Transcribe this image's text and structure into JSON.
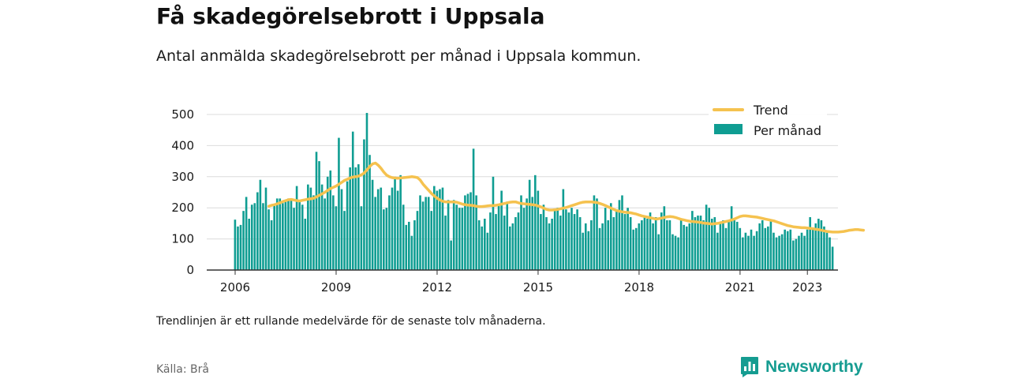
{
  "header": {
    "title": "Få skadegörelsebrott i Uppsala",
    "subtitle": "Antal anmälda skadegörelsebrott per månad i Uppsala kommun."
  },
  "footer": {
    "note": "Trendlinjen är ett rullande medelvärde för de senaste tolv månaderna.",
    "source": "Källa: Brå",
    "brand": "Newsworthy"
  },
  "colors": {
    "bars": "#0f9d92",
    "trend": "#f5c24f",
    "brand": "#159c91"
  },
  "icons": {
    "brand_logo": "bar-chart-speech-bubble-icon"
  },
  "chart_data": {
    "type": "bar",
    "title": "",
    "xlabel": "",
    "ylabel": "",
    "ylim": [
      0,
      500
    ],
    "yticks": [
      0,
      100,
      200,
      300,
      400,
      500
    ],
    "xticks": [
      "2006",
      "2009",
      "2012",
      "2015",
      "2018",
      "2021",
      "2023"
    ],
    "grid": true,
    "legend_position": "top-right",
    "start_month": "2006-01",
    "series": [
      {
        "name": "Per månad",
        "kind": "bar",
        "values": [
          162,
          140,
          145,
          190,
          235,
          165,
          210,
          215,
          250,
          290,
          215,
          265,
          195,
          160,
          210,
          230,
          230,
          215,
          220,
          230,
          225,
          200,
          270,
          220,
          210,
          165,
          275,
          265,
          240,
          380,
          350,
          275,
          230,
          300,
          320,
          240,
          205,
          425,
          260,
          190,
          285,
          330,
          445,
          330,
          340,
          205,
          420,
          505,
          370,
          290,
          235,
          260,
          265,
          195,
          200,
          240,
          265,
          300,
          255,
          305,
          210,
          145,
          155,
          110,
          160,
          190,
          240,
          220,
          235,
          235,
          190,
          270,
          255,
          260,
          265,
          175,
          225,
          95,
          225,
          210,
          200,
          200,
          240,
          245,
          250,
          390,
          240,
          160,
          140,
          165,
          120,
          185,
          300,
          180,
          210,
          255,
          175,
          220,
          140,
          150,
          170,
          185,
          240,
          200,
          230,
          290,
          235,
          305,
          255,
          180,
          210,
          170,
          150,
          165,
          195,
          200,
          175,
          260,
          195,
          185,
          200,
          180,
          195,
          170,
          120,
          150,
          125,
          160,
          240,
          230,
          135,
          150,
          200,
          160,
          215,
          170,
          190,
          225,
          240,
          180,
          200,
          170,
          130,
          135,
          150,
          160,
          175,
          165,
          185,
          150,
          170,
          115,
          185,
          205,
          160,
          160,
          115,
          110,
          105,
          165,
          145,
          140,
          150,
          190,
          170,
          175,
          175,
          160,
          210,
          200,
          165,
          170,
          120,
          150,
          160,
          135,
          160,
          205,
          160,
          155,
          135,
          105,
          120,
          110,
          130,
          110,
          125,
          150,
          160,
          135,
          140,
          160,
          120,
          105,
          110,
          115,
          130,
          125,
          130,
          95,
          100,
          110,
          120,
          110,
          130,
          170,
          130,
          150,
          165,
          160,
          140,
          120,
          105,
          75
        ]
      },
      {
        "name": "Trend",
        "kind": "line",
        "start_month": "2007-01",
        "values": [
          205,
          208,
          210,
          213,
          216,
          220,
          223,
          226,
          227,
          225,
          223,
          222,
          224,
          226,
          228,
          229,
          231,
          235,
          240,
          245,
          250,
          256,
          262,
          266,
          270,
          276,
          282,
          288,
          292,
          296,
          299,
          300,
          302,
          306,
          312,
          322,
          333,
          341,
          344,
          337,
          327,
          315,
          305,
          300,
          297,
          296,
          295,
          296,
          297,
          298,
          299,
          300,
          299,
          297,
          289,
          276,
          266,
          256,
          246,
          238,
          231,
          225,
          221,
          219,
          219,
          219,
          219,
          218,
          215,
          212,
          210,
          209,
          208,
          207,
          205,
          204,
          204,
          205,
          206,
          207,
          207,
          208,
          210,
          212,
          214,
          216,
          218,
          219,
          219,
          216,
          214,
          213,
          212,
          211,
          210,
          209,
          206,
          203,
          199,
          195,
          193,
          193,
          194,
          195,
          197,
          199,
          201,
          204,
          207,
          210,
          213,
          216,
          218,
          219,
          219,
          219,
          218,
          217,
          214,
          211,
          207,
          203,
          199,
          195,
          191,
          189,
          187,
          186,
          185,
          184,
          182,
          180,
          177,
          174,
          172,
          170,
          168,
          166,
          164,
          165,
          167,
          169,
          171,
          172,
          171,
          169,
          166,
          163,
          161,
          159,
          157,
          156,
          155,
          154,
          153,
          151,
          150,
          149,
          148,
          149,
          150,
          152,
          154,
          156,
          158,
          161,
          164,
          168,
          172,
          174,
          174,
          173,
          172,
          171,
          170,
          168,
          166,
          164,
          162,
          160,
          158,
          155,
          152,
          149,
          146,
          143,
          141,
          139,
          138,
          137,
          136,
          136,
          135,
          134,
          133,
          131,
          130,
          128,
          126,
          124,
          123,
          122,
          122,
          122,
          123,
          124,
          126,
          128,
          129,
          130,
          130,
          129,
          128
        ]
      }
    ]
  }
}
